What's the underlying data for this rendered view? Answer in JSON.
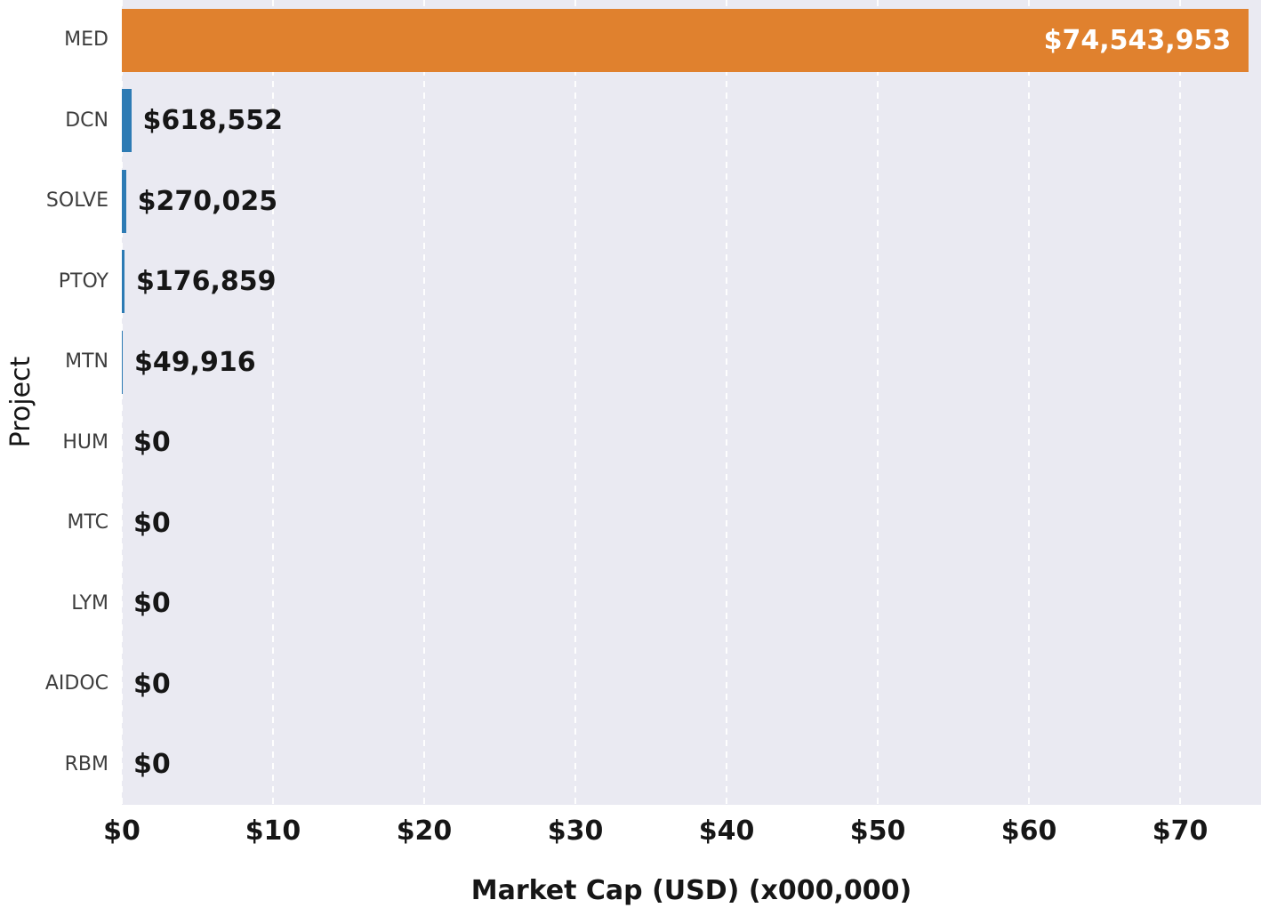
{
  "chart_data": {
    "type": "bar",
    "orientation": "horizontal",
    "title": "",
    "xlabel": "Market Cap (USD) (x000,000)",
    "ylabel": "Project",
    "categories": [
      "MED",
      "DCN",
      "SOLVE",
      "PTOY",
      "MTN",
      "HUM",
      "MTC",
      "LYM",
      "AIDOC",
      "RBM"
    ],
    "values": [
      74543953,
      618552,
      270025,
      176859,
      49916,
      0,
      0,
      0,
      0,
      0
    ],
    "value_labels": [
      "$74,543,953",
      "$618,552",
      "$270,025",
      "$176,859",
      "$49,916",
      "$0",
      "$0",
      "$0",
      "$0",
      "$0"
    ],
    "x_ticks": [
      {
        "label": "$0",
        "value_millions": 0
      },
      {
        "label": "$10",
        "value_millions": 10
      },
      {
        "label": "$20",
        "value_millions": 20
      },
      {
        "label": "$30",
        "value_millions": 30
      },
      {
        "label": "$40",
        "value_millions": 40
      },
      {
        "label": "$50",
        "value_millions": 50
      },
      {
        "label": "$60",
        "value_millions": 60
      },
      {
        "label": "$70",
        "value_millions": 70
      }
    ],
    "xlim_millions": [
      0,
      75.35
    ],
    "grid": true,
    "legend": "none",
    "colors": {
      "highlight_bar": "#e0812e",
      "default_bar": "#2d7bb4",
      "plot_bg": "#eaeaf2",
      "gridline": "#ffffff",
      "in_bar_text": "#ffffff",
      "value_text": "#161616",
      "tick_text": "#161616",
      "category_text": "#3d3d3d"
    }
  }
}
